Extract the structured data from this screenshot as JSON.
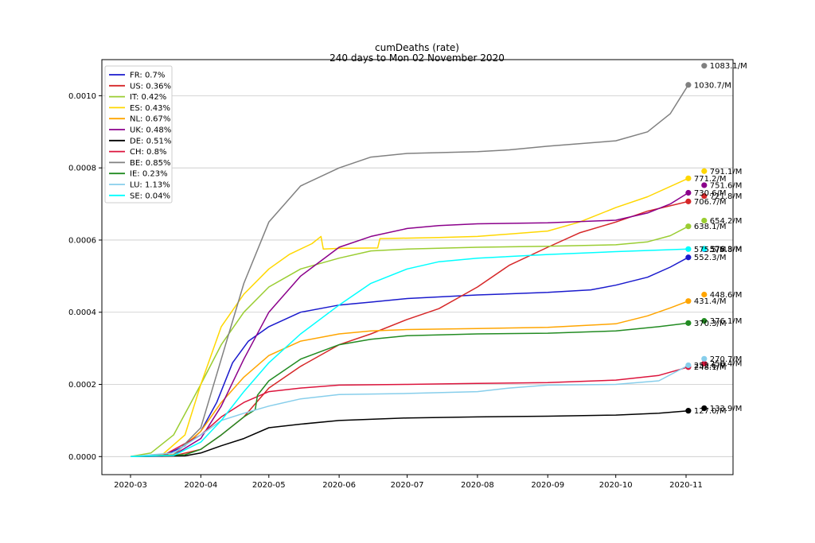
{
  "chart_data": {
    "type": "line",
    "title": "cumDeaths (rate)",
    "subtitle": "240 days to Mon 02 November 2020",
    "xlabel": "",
    "ylabel": "",
    "x_ticks": [
      "2020-03",
      "2020-04",
      "2020-05",
      "2020-06",
      "2020-07",
      "2020-08",
      "2020-09",
      "2020-10",
      "2020-11"
    ],
    "y_ticks": [
      "0.0000",
      "0.0002",
      "0.0004",
      "0.0006",
      "0.0008",
      "0.0010"
    ],
    "ylim": [
      -5e-05,
      0.0011
    ],
    "grid": "horizontal",
    "legend_placement": "top-left",
    "series": [
      {
        "name": "FR: 0.7%",
        "color": "#1a1acd",
        "points": [
          [
            "2020-03-01",
            0
          ],
          [
            "2020-03-15",
            1e-06
          ],
          [
            "2020-03-25",
            3e-05
          ],
          [
            "2020-04-01",
            7e-05
          ],
          [
            "2020-04-08",
            0.00015
          ],
          [
            "2020-04-15",
            0.00026
          ],
          [
            "2020-04-22",
            0.00032
          ],
          [
            "2020-05-01",
            0.00036
          ],
          [
            "2020-05-15",
            0.0004
          ],
          [
            "2020-06-01",
            0.00042
          ],
          [
            "2020-06-15",
            0.000428
          ],
          [
            "2020-07-01",
            0.000438
          ],
          [
            "2020-08-01",
            0.000448
          ],
          [
            "2020-09-01",
            0.000455
          ],
          [
            "2020-09-20",
            0.000462
          ],
          [
            "2020-10-01",
            0.000475
          ],
          [
            "2020-10-15",
            0.000497
          ],
          [
            "2020-10-25",
            0.000525
          ],
          [
            "2020-11-02",
            0.000552
          ]
        ],
        "end_value": 0.000552,
        "end_label": "552.3/M",
        "proj_value": 0.000575,
        "proj_label": "575.8/M"
      },
      {
        "name": "US: 0.36%",
        "color": "#d62728",
        "points": [
          [
            "2020-03-01",
            0
          ],
          [
            "2020-03-20",
            2e-06
          ],
          [
            "2020-04-01",
            2e-05
          ],
          [
            "2020-04-10",
            6e-05
          ],
          [
            "2020-04-20",
            0.00011
          ],
          [
            "2020-05-01",
            0.00019
          ],
          [
            "2020-05-15",
            0.00025
          ],
          [
            "2020-06-01",
            0.00031
          ],
          [
            "2020-06-15",
            0.00034
          ],
          [
            "2020-07-01",
            0.00038
          ],
          [
            "2020-07-15",
            0.00041
          ],
          [
            "2020-08-01",
            0.00047
          ],
          [
            "2020-08-15",
            0.00053
          ],
          [
            "2020-09-01",
            0.00058
          ],
          [
            "2020-09-15",
            0.00062
          ],
          [
            "2020-10-01",
            0.00065
          ],
          [
            "2020-10-15",
            0.00068
          ],
          [
            "2020-11-02",
            0.000707
          ]
        ],
        "end_value": 0.000707,
        "end_label": "706.7/M",
        "proj_value": 0.000722,
        "proj_label": "721.8/M"
      },
      {
        "name": "IT: 0.42%",
        "color": "#9acd32",
        "points": [
          [
            "2020-03-01",
            0
          ],
          [
            "2020-03-10",
            1e-05
          ],
          [
            "2020-03-20",
            6e-05
          ],
          [
            "2020-04-01",
            0.0002
          ],
          [
            "2020-04-10",
            0.00031
          ],
          [
            "2020-04-20",
            0.0004
          ],
          [
            "2020-05-01",
            0.00047
          ],
          [
            "2020-05-15",
            0.00052
          ],
          [
            "2020-06-01",
            0.00055
          ],
          [
            "2020-06-15",
            0.00057
          ],
          [
            "2020-07-01",
            0.000575
          ],
          [
            "2020-08-01",
            0.00058
          ],
          [
            "2020-09-01",
            0.000583
          ],
          [
            "2020-10-01",
            0.000587
          ],
          [
            "2020-10-15",
            0.000595
          ],
          [
            "2020-10-25",
            0.000612
          ],
          [
            "2020-11-02",
            0.000638
          ]
        ],
        "end_value": 0.000638,
        "end_label": "638.1/M",
        "proj_value": 0.000654,
        "proj_label": "654.2/M"
      },
      {
        "name": "ES: 0.43%",
        "color": "#ffd700",
        "points": [
          [
            "2020-03-01",
            0
          ],
          [
            "2020-03-15",
            5e-06
          ],
          [
            "2020-03-25",
            6e-05
          ],
          [
            "2020-04-01",
            0.0002
          ],
          [
            "2020-04-10",
            0.00036
          ],
          [
            "2020-04-20",
            0.00045
          ],
          [
            "2020-05-01",
            0.00052
          ],
          [
            "2020-05-10",
            0.00056
          ],
          [
            "2020-05-20",
            0.00059
          ],
          [
            "2020-05-24",
            0.00061
          ],
          [
            "2020-05-25",
            0.000575
          ],
          [
            "2020-06-01",
            0.000577
          ],
          [
            "2020-06-18",
            0.000578
          ],
          [
            "2020-06-19",
            0.000604
          ],
          [
            "2020-07-15",
            0.000607
          ],
          [
            "2020-08-01",
            0.00061
          ],
          [
            "2020-09-01",
            0.000625
          ],
          [
            "2020-09-15",
            0.00065
          ],
          [
            "2020-10-01",
            0.00069
          ],
          [
            "2020-10-15",
            0.00072
          ],
          [
            "2020-11-02",
            0.000771
          ]
        ],
        "end_value": 0.000771,
        "end_label": "771.2/M",
        "proj_value": 0.000791,
        "proj_label": "791.1/M"
      },
      {
        "name": "NL: 0.67%",
        "color": "#ffa500",
        "points": [
          [
            "2020-03-01",
            0
          ],
          [
            "2020-03-20",
            5e-06
          ],
          [
            "2020-04-01",
            7e-05
          ],
          [
            "2020-04-10",
            0.00015
          ],
          [
            "2020-04-20",
            0.00022
          ],
          [
            "2020-05-01",
            0.00028
          ],
          [
            "2020-05-15",
            0.00032
          ],
          [
            "2020-06-01",
            0.00034
          ],
          [
            "2020-06-15",
            0.000348
          ],
          [
            "2020-07-01",
            0.000352
          ],
          [
            "2020-08-01",
            0.000355
          ],
          [
            "2020-09-01",
            0.000358
          ],
          [
            "2020-10-01",
            0.000368
          ],
          [
            "2020-10-15",
            0.00039
          ],
          [
            "2020-10-25",
            0.000412
          ],
          [
            "2020-11-02",
            0.000431
          ]
        ],
        "end_value": 0.000431,
        "end_label": "431.4/M",
        "proj_value": 0.000449,
        "proj_label": "448.6/M"
      },
      {
        "name": "UK: 0.48%",
        "color": "#8b008b",
        "points": [
          [
            "2020-03-01",
            0
          ],
          [
            "2020-03-20",
            4e-06
          ],
          [
            "2020-04-01",
            5e-05
          ],
          [
            "2020-04-10",
            0.00014
          ],
          [
            "2020-04-20",
            0.00027
          ],
          [
            "2020-05-01",
            0.0004
          ],
          [
            "2020-05-15",
            0.0005
          ],
          [
            "2020-06-01",
            0.00058
          ],
          [
            "2020-06-15",
            0.00061
          ],
          [
            "2020-07-01",
            0.000632
          ],
          [
            "2020-07-15",
            0.00064
          ],
          [
            "2020-08-01",
            0.000645
          ],
          [
            "2020-09-01",
            0.000648
          ],
          [
            "2020-10-01",
            0.000655
          ],
          [
            "2020-10-15",
            0.000675
          ],
          [
            "2020-10-25",
            0.0007
          ],
          [
            "2020-11-02",
            0.000731
          ]
        ],
        "end_value": 0.000731,
        "end_label": "730.6/M",
        "proj_value": 0.000752,
        "proj_label": "751.6/M"
      },
      {
        "name": "DE: 0.51%",
        "color": "#000000",
        "points": [
          [
            "2020-03-01",
            0
          ],
          [
            "2020-03-25",
            2e-06
          ],
          [
            "2020-04-01",
            1e-05
          ],
          [
            "2020-04-10",
            3e-05
          ],
          [
            "2020-04-20",
            5e-05
          ],
          [
            "2020-05-01",
            8e-05
          ],
          [
            "2020-05-15",
            9e-05
          ],
          [
            "2020-06-01",
            0.0001
          ],
          [
            "2020-07-01",
            0.000107
          ],
          [
            "2020-08-01",
            0.00011
          ],
          [
            "2020-09-01",
            0.000112
          ],
          [
            "2020-10-01",
            0.000115
          ],
          [
            "2020-10-20",
            0.00012
          ],
          [
            "2020-11-02",
            0.000127
          ]
        ],
        "end_value": 0.000127,
        "end_label": "127.0/M",
        "proj_value": 0.000134,
        "proj_label": "133.9/M"
      },
      {
        "name": "CH: 0.8%",
        "color": "#dc143c",
        "points": [
          [
            "2020-03-01",
            0
          ],
          [
            "2020-03-15",
            2e-06
          ],
          [
            "2020-04-01",
            6e-05
          ],
          [
            "2020-04-10",
            0.00011
          ],
          [
            "2020-04-20",
            0.00015
          ],
          [
            "2020-05-01",
            0.00018
          ],
          [
            "2020-05-15",
            0.00019
          ],
          [
            "2020-06-01",
            0.000198
          ],
          [
            "2020-07-01",
            0.0002
          ],
          [
            "2020-08-01",
            0.000203
          ],
          [
            "2020-09-01",
            0.000205
          ],
          [
            "2020-10-01",
            0.000212
          ],
          [
            "2020-10-20",
            0.000225
          ],
          [
            "2020-11-02",
            0.000248
          ]
        ],
        "end_value": 0.000248,
        "end_label": "248.1/M",
        "proj_value": 0.000258,
        "proj_label": "258.4/M"
      },
      {
        "name": "BE: 0.85%",
        "color": "#808080",
        "points": [
          [
            "2020-03-01",
            0
          ],
          [
            "2020-03-20",
            3e-06
          ],
          [
            "2020-04-01",
            8e-05
          ],
          [
            "2020-04-10",
            0.00027
          ],
          [
            "2020-04-20",
            0.00048
          ],
          [
            "2020-05-01",
            0.00065
          ],
          [
            "2020-05-15",
            0.00075
          ],
          [
            "2020-06-01",
            0.0008
          ],
          [
            "2020-06-15",
            0.00083
          ],
          [
            "2020-07-01",
            0.00084
          ],
          [
            "2020-08-01",
            0.000845
          ],
          [
            "2020-08-15",
            0.00085
          ],
          [
            "2020-09-01",
            0.00086
          ],
          [
            "2020-10-01",
            0.000875
          ],
          [
            "2020-10-15",
            0.0009
          ],
          [
            "2020-10-25",
            0.00095
          ],
          [
            "2020-11-02",
            0.00103
          ]
        ],
        "end_value": 0.00103,
        "end_label": "1030.7/M",
        "proj_value": 0.001083,
        "proj_label": "1083.1/M"
      },
      {
        "name": "IE: 0.23%",
        "color": "#228b22",
        "points": [
          [
            "2020-03-01",
            0
          ],
          [
            "2020-03-25",
            5e-06
          ],
          [
            "2020-04-01",
            2e-05
          ],
          [
            "2020-04-10",
            6e-05
          ],
          [
            "2020-04-20",
            0.00011
          ],
          [
            "2020-04-25",
            0.00013
          ],
          [
            "2020-04-26",
            0.00017
          ],
          [
            "2020-05-01",
            0.00021
          ],
          [
            "2020-05-15",
            0.00027
          ],
          [
            "2020-06-01",
            0.00031
          ],
          [
            "2020-06-15",
            0.000325
          ],
          [
            "2020-07-01",
            0.000335
          ],
          [
            "2020-08-01",
            0.00034
          ],
          [
            "2020-09-01",
            0.000342
          ],
          [
            "2020-10-01",
            0.000348
          ],
          [
            "2020-10-20",
            0.00036
          ],
          [
            "2020-11-02",
            0.00037
          ]
        ],
        "end_value": 0.00037,
        "end_label": "370.3/M",
        "proj_value": 0.000376,
        "proj_label": "376.1/M"
      },
      {
        "name": "LU: 1.13%",
        "color": "#87ceeb",
        "points": [
          [
            "2020-03-01",
            0
          ],
          [
            "2020-03-20",
            1e-05
          ],
          [
            "2020-04-01",
            6e-05
          ],
          [
            "2020-04-10",
            0.0001
          ],
          [
            "2020-04-20",
            0.00012
          ],
          [
            "2020-05-01",
            0.00014
          ],
          [
            "2020-05-15",
            0.00016
          ],
          [
            "2020-06-01",
            0.000172
          ],
          [
            "2020-07-01",
            0.000175
          ],
          [
            "2020-08-01",
            0.00018
          ],
          [
            "2020-08-15",
            0.00019
          ],
          [
            "2020-09-01",
            0.000198
          ],
          [
            "2020-10-01",
            0.0002
          ],
          [
            "2020-10-20",
            0.00021
          ],
          [
            "2020-11-02",
            0.000253
          ]
        ],
        "end_value": 0.000253,
        "end_label": "252.6/M",
        "proj_value": 0.000271,
        "proj_label": "270.7/M"
      },
      {
        "name": "SE: 0.04%",
        "color": "#00ffff",
        "points": [
          [
            "2020-03-01",
            0
          ],
          [
            "2020-03-20",
            3e-06
          ],
          [
            "2020-04-01",
            4e-05
          ],
          [
            "2020-04-10",
            0.0001
          ],
          [
            "2020-04-20",
            0.00018
          ],
          [
            "2020-05-01",
            0.00026
          ],
          [
            "2020-05-15",
            0.00034
          ],
          [
            "2020-06-01",
            0.00042
          ],
          [
            "2020-06-15",
            0.00048
          ],
          [
            "2020-07-01",
            0.00052
          ],
          [
            "2020-07-15",
            0.00054
          ],
          [
            "2020-08-01",
            0.00055
          ],
          [
            "2020-09-01",
            0.00056
          ],
          [
            "2020-10-01",
            0.000568
          ],
          [
            "2020-11-02",
            0.000575
          ]
        ],
        "end_value": 0.000575,
        "end_label": "575.5/M",
        "proj_value": 0.000576,
        "proj_label": "576.3/M"
      }
    ]
  }
}
